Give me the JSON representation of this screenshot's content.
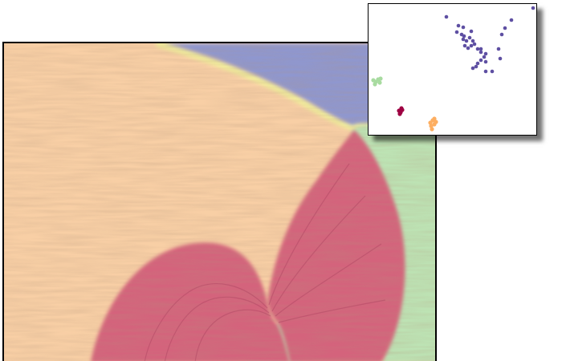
{
  "colors": {
    "orange_region": "#f8cfa5",
    "red_region": "#d4647c",
    "green_region": "#bde3b4",
    "blue_region": "#8f97cf",
    "yellow_edge": "#f2ec9c",
    "frame": "#000000"
  },
  "main_view": {
    "description_icon": "flow-field-visualization",
    "regions": [
      "blue-region",
      "orange-region",
      "green-region",
      "red-lobe-left",
      "red-lobe-right"
    ]
  },
  "inset_view": {
    "clusters": [
      {
        "name": "purple",
        "color": "#5e4fa2"
      },
      {
        "name": "green",
        "color": "#a8dba0"
      },
      {
        "name": "red",
        "color": "#9e0142"
      },
      {
        "name": "orange",
        "color": "#fdae61"
      }
    ]
  }
}
